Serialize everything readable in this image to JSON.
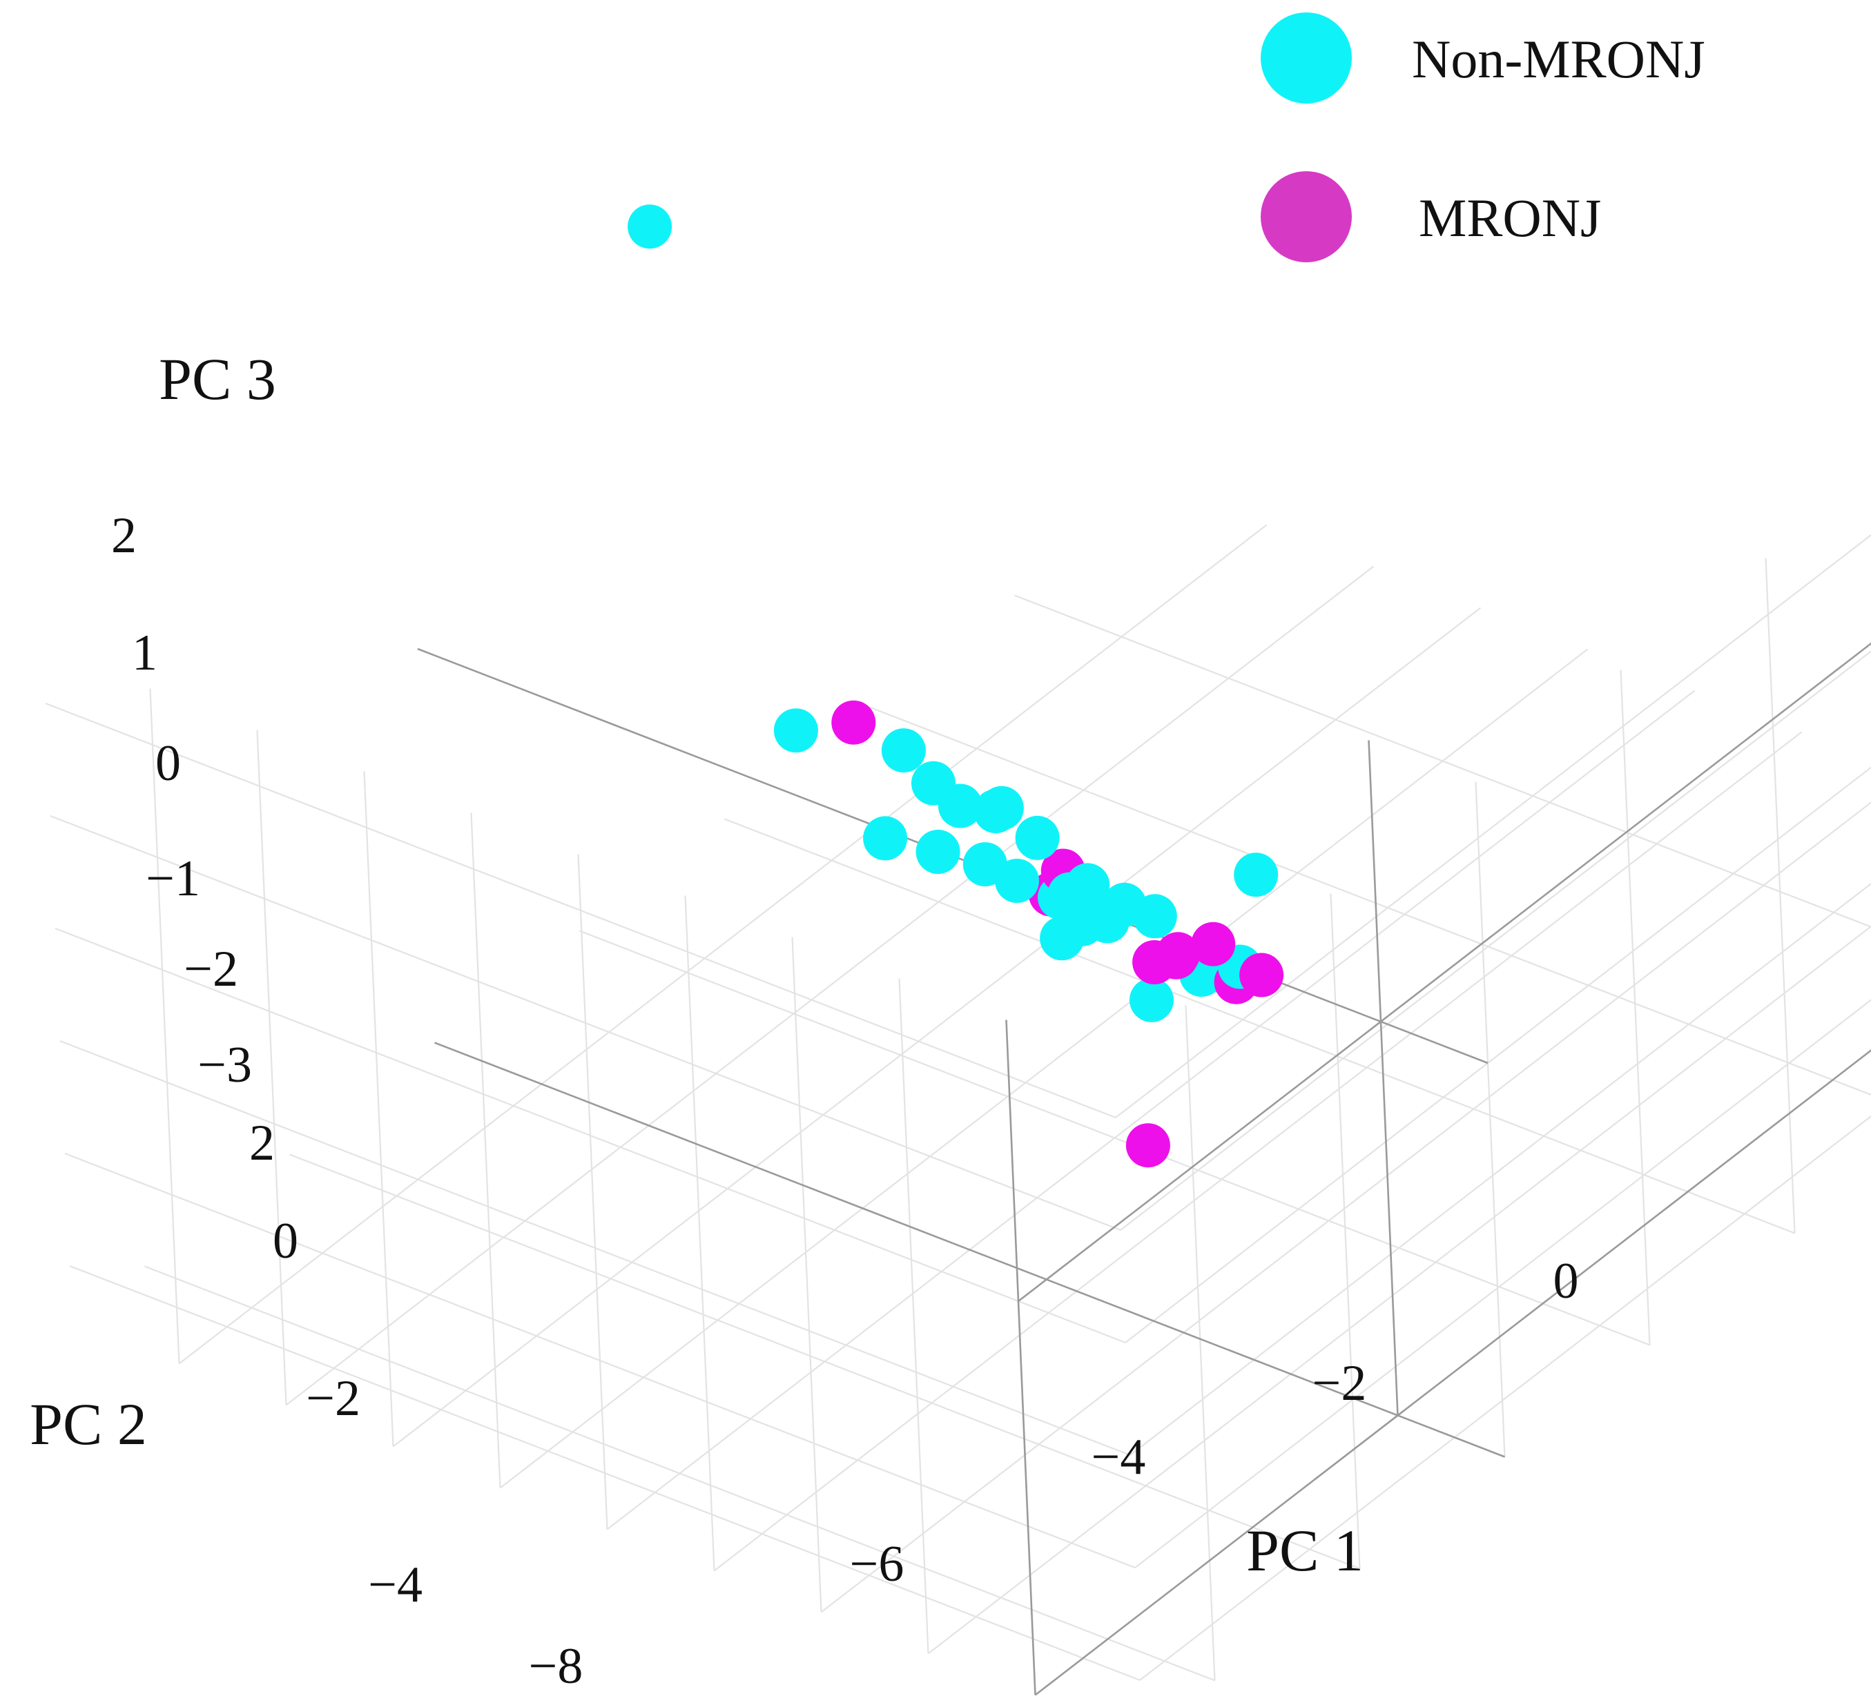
{
  "chart_data": {
    "type": "scatter3d",
    "title": "",
    "axes": {
      "x": {
        "label": "PC 1",
        "range": [
          -9,
          1
        ],
        "ticks": [
          "−8",
          "−6",
          "−4",
          "−2",
          "0"
        ]
      },
      "y": {
        "label": "PC 2",
        "range": [
          -5,
          2.5
        ],
        "ticks": [
          "−4",
          "−2",
          "0",
          "2"
        ]
      },
      "z": {
        "label": "PC 3",
        "range": [
          -3.5,
          2.5
        ],
        "ticks": [
          "−3",
          "−2",
          "−1",
          "0",
          "1",
          "2"
        ]
      }
    },
    "legend": {
      "position": "top-right",
      "entries": [
        {
          "name": "Non-MRONJ",
          "color": "#0ff3f8"
        },
        {
          "name": "MRONJ",
          "color": "#d63ac4"
        }
      ]
    },
    "series": [
      {
        "name": "Non-MRONJ",
        "color": "#0ff3f8",
        "points": [
          [
            -8.9,
            -1.6,
            2.2
          ],
          [
            -2.5,
            1.5,
            2.2
          ],
          [
            -3.0,
            1.0,
            2.3
          ],
          [
            -2.2,
            1.2,
            2.3
          ],
          [
            -4.3,
            0.8,
            1.8
          ],
          [
            -3.3,
            0.6,
            1.5
          ],
          [
            -3.0,
            0.8,
            1.2
          ],
          [
            -2.7,
            0.7,
            1.1
          ],
          [
            -1.8,
            0.7,
            0.9
          ],
          [
            -2.0,
            0.7,
            0.7
          ],
          [
            -3.8,
            -0.2,
            0.3
          ],
          [
            -4.0,
            -0.3,
            0.1
          ],
          [
            -3.4,
            0.0,
            0.0
          ],
          [
            -3.0,
            0.0,
            0.0
          ],
          [
            -2.9,
            -0.1,
            -0.1
          ],
          [
            -2.7,
            -0.1,
            -0.2
          ],
          [
            -1.6,
            0.4,
            0.0
          ],
          [
            -1.4,
            0.2,
            0.1
          ],
          [
            -1.5,
            0.0,
            -0.1
          ],
          [
            -1.6,
            -0.2,
            -0.3
          ],
          [
            -3.9,
            -0.5,
            -0.3
          ],
          [
            -3.3,
            -0.4,
            -0.4
          ],
          [
            -3.1,
            -0.5,
            -0.6
          ],
          [
            -3.9,
            -0.7,
            -1.0
          ],
          [
            -3.1,
            -0.7,
            -0.9
          ],
          [
            -4.4,
            -2.3,
            -2.6
          ]
        ]
      },
      {
        "name": "MRONJ",
        "color": "#ee10ea",
        "points": [
          [
            -5.6,
            -0.5,
            0.1
          ],
          [
            -3.1,
            -0.1,
            0.1
          ],
          [
            -2.8,
            0.2,
            0.3
          ],
          [
            -1.7,
            0.3,
            0.2
          ],
          [
            -1.9,
            0.0,
            -0.1
          ],
          [
            -1.5,
            -0.1,
            -0.3
          ],
          [
            -1.4,
            -0.2,
            -0.3
          ],
          [
            -2.7,
            -0.8,
            -1.1
          ],
          [
            -3.2,
            -0.9,
            -1.5
          ],
          [
            0.3,
            1.8,
            0.8
          ]
        ]
      }
    ]
  }
}
